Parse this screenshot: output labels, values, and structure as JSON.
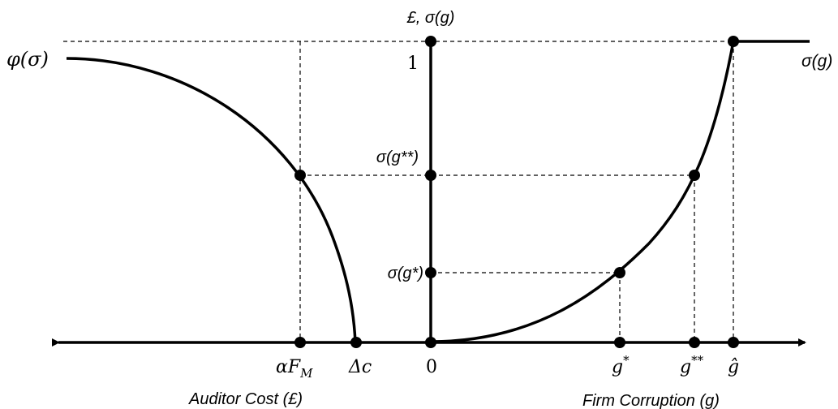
{
  "labels": {
    "y_axis_title": "£, σ(g)",
    "y_one": "1",
    "y_sigma_g2": "σ(g**)",
    "y_sigma_g1": "σ(g*)",
    "phi_curve": "φ(σ)",
    "sigma_curve": "σ(g)",
    "x_alpha_f": "αF",
    "x_alpha_f_sub": "M",
    "x_delta_c": "Δc",
    "x_zero": "0",
    "x_g1": "g",
    "x_g1_sup": "*",
    "x_g2": "g",
    "x_g2_sup": "**",
    "x_ghat": "ĝ",
    "left_axis_title": "Auditor Cost (£)",
    "right_axis_title": "Firm Corruption (g)"
  }
}
